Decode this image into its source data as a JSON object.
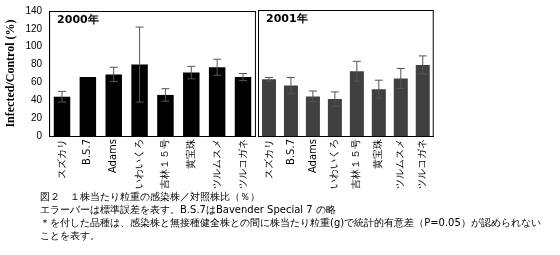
{
  "chart_data": [
    {
      "type": "bar",
      "title": "2000年",
      "y_label": "Infected/Control (%)",
      "categories": [
        "スズカリ",
        "B.S.7",
        "Adams",
        "いわいくろ",
        "吉林１５号",
        "黄宝珠",
        "ツルムスメ",
        "ツルコガネ"
      ],
      "values": [
        44,
        66,
        69,
        80,
        46,
        71,
        77,
        66
      ],
      "errors": [
        6,
        null,
        8,
        42,
        7,
        7,
        9,
        4
      ],
      "color": "#000000",
      "ylim": [
        0,
        140
      ],
      "yticks": [
        0,
        20,
        40,
        60,
        80,
        100,
        120,
        140
      ],
      "grid": false
    },
    {
      "type": "bar",
      "title": "2001年",
      "categories": [
        "スズカリ",
        "B.S.7",
        "Adams",
        "いわいくろ",
        "吉林１５号",
        "黄宝珠",
        "ツルムスメ",
        "ツルコガネ"
      ],
      "values": [
        63,
        56,
        44,
        41,
        72,
        52,
        64,
        79
      ],
      "errors": [
        2,
        9,
        6,
        8,
        11,
        10,
        11,
        10
      ],
      "color": "#404040",
      "ylim": [
        0,
        140
      ],
      "yticks": [
        0,
        20,
        40,
        60,
        80,
        100,
        120,
        140
      ],
      "grid": false,
      "tick_labels": "x"
    }
  ],
  "caption": [
    "図２　１株当たり粒重の感染株／対照株比（％）",
    "エラーバーは標準誤差を表す。B.S.7はBavender Special 7 の略",
    "＊を付した品種は、感染株と無接種健全株との間に株当たり粒重(g)で統計的有意差（P=0.05）が認められないことを表す。"
  ]
}
